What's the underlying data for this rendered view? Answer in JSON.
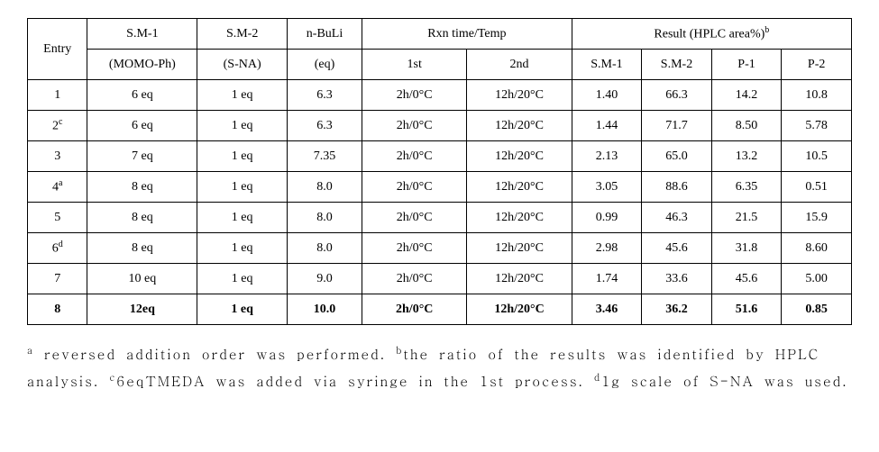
{
  "table": {
    "headers": {
      "entry": "Entry",
      "sm1_top": "S.M-1",
      "sm1_bot": "(MOMO-Ph)",
      "sm2_top": "S.M-2",
      "sm2_bot": "(S-NA)",
      "nbuli_top": "n-BuLi",
      "nbuli_bot": "(eq)",
      "rxn_top": "Rxn time/Temp",
      "rxn_1st": "1st",
      "rxn_2nd": "2nd",
      "result_top": "Result (HPLC area%)",
      "result_sup": "b",
      "result_sm1": "S.M-1",
      "result_sm2": "S.M-2",
      "result_p1": "P-1",
      "result_p2": "P-2"
    },
    "rows": [
      {
        "entry": "1",
        "entry_sup": "",
        "sm1": "6 eq",
        "sm2": "1 eq",
        "nbuli": "6.3",
        "rxn1": "2h/0°C",
        "rxn2": "12h/20°C",
        "r_sm1": "1.40",
        "r_sm2": "66.3",
        "r_p1": "14.2",
        "r_p2": "10.8",
        "bold": false
      },
      {
        "entry": "2",
        "entry_sup": "c",
        "sm1": "6 eq",
        "sm2": "1 eq",
        "nbuli": "6.3",
        "rxn1": "2h/0°C",
        "rxn2": "12h/20°C",
        "r_sm1": "1.44",
        "r_sm2": "71.7",
        "r_p1": "8.50",
        "r_p2": "5.78",
        "bold": false
      },
      {
        "entry": "3",
        "entry_sup": "",
        "sm1": "7 eq",
        "sm2": "1 eq",
        "nbuli": "7.35",
        "rxn1": "2h/0°C",
        "rxn2": "12h/20°C",
        "r_sm1": "2.13",
        "r_sm2": "65.0",
        "r_p1": "13.2",
        "r_p2": "10.5",
        "bold": false
      },
      {
        "entry": "4",
        "entry_sup": "a",
        "sm1": "8 eq",
        "sm2": "1 eq",
        "nbuli": "8.0",
        "rxn1": "2h/0°C",
        "rxn2": "12h/20°C",
        "r_sm1": "3.05",
        "r_sm2": "88.6",
        "r_p1": "6.35",
        "r_p2": "0.51",
        "bold": false
      },
      {
        "entry": "5",
        "entry_sup": "",
        "sm1": "8 eq",
        "sm2": "1 eq",
        "nbuli": "8.0",
        "rxn1": "2h/0°C",
        "rxn2": "12h/20°C",
        "r_sm1": "0.99",
        "r_sm2": "46.3",
        "r_p1": "21.5",
        "r_p2": "15.9",
        "bold": false
      },
      {
        "entry": "6",
        "entry_sup": "d",
        "sm1": "8 eq",
        "sm2": "1 eq",
        "nbuli": "8.0",
        "rxn1": "2h/0°C",
        "rxn2": "12h/20°C",
        "r_sm1": "2.98",
        "r_sm2": "45.6",
        "r_p1": "31.8",
        "r_p2": "8.60",
        "bold": false
      },
      {
        "entry": "7",
        "entry_sup": "",
        "sm1": "10   eq",
        "sm2": "1   eq",
        "nbuli": "9.0",
        "rxn1": "2h/0°C",
        "rxn2": "12h/20°C",
        "r_sm1": "1.74",
        "r_sm2": "33.6",
        "r_p1": "45.6",
        "r_p2": "5.00",
        "bold": false
      },
      {
        "entry": "8",
        "entry_sup": "",
        "sm1": "12eq",
        "sm2": "1   eq",
        "nbuli": "10.0",
        "rxn1": "2h/0°C",
        "rxn2": "12h/20°C",
        "r_sm1": "3.46",
        "r_sm2": "36.2",
        "r_p1": "51.6",
        "r_p2": "0.85",
        "bold": true
      }
    ]
  },
  "footnotes": {
    "a_sup": "a",
    "a_text": " reversed addition order was performed. ",
    "b_sup": "b",
    "b_text": "the ratio of the results was identified by HPLC analysis. ",
    "c_sup": "c",
    "c_text": "6eqTMEDA was added via syringe in the 1st process. ",
    "d_sup": "d",
    "d_text": "1g scale of S-NA was used."
  }
}
